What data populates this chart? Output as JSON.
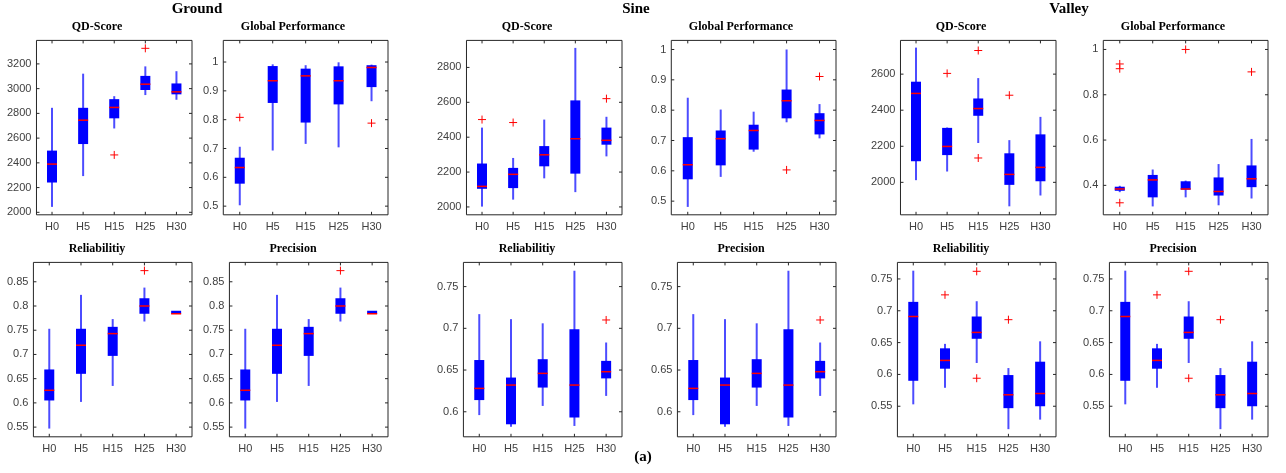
{
  "chart_data": [
    {
      "type": "other",
      "title": "Ground"
    },
    {
      "type": "other",
      "title": "Sine"
    },
    {
      "type": "other",
      "title": "Valley"
    },
    {
      "type": "box",
      "title": "QD-Score",
      "categories": [
        "H0",
        "H5",
        "H15",
        "H25",
        "H30"
      ],
      "color": "#0000ff",
      "ylim": [
        1980,
        3390
      ],
      "yticks": [
        2000,
        2200,
        2400,
        2600,
        2800,
        3000,
        3200
      ],
      "boxes": [
        {
          "low": 2044,
          "q1": 2241,
          "median": 2390,
          "q3": 2499,
          "high": 2845
        },
        {
          "low": 2293,
          "q1": 2552,
          "median": 2745,
          "q3": 2845,
          "high": 3121
        },
        {
          "low": 2678,
          "q1": 2760,
          "median": 2848,
          "q3": 2915,
          "high": 2939,
          "outliers": [
            2464
          ]
        },
        {
          "low": 2948,
          "q1": 2989,
          "median": 3036,
          "q3": 3103,
          "high": 3180,
          "outliers": [
            3326
          ]
        },
        {
          "low": 2910,
          "q1": 2954,
          "median": 2974,
          "q3": 3042,
          "high": 3141
        }
      ]
    },
    {
      "type": "box",
      "title": "Global Performance",
      "categories": [
        "H0",
        "H5",
        "H15",
        "H25",
        "H30"
      ],
      "color": "#0000ff",
      "ylim": [
        0.47,
        1.075
      ],
      "yticks": [
        0.5,
        0.6,
        0.7,
        0.8,
        0.9,
        1
      ],
      "boxes": [
        {
          "low": 0.503,
          "q1": 0.578,
          "median": 0.634,
          "q3": 0.668,
          "high": 0.706,
          "outliers": [
            0.808
          ]
        },
        {
          "low": 0.693,
          "q1": 0.858,
          "median": 0.935,
          "q3": 0.986,
          "high": 0.992
        },
        {
          "low": 0.716,
          "q1": 0.79,
          "median": 0.952,
          "q3": 0.977,
          "high": 0.989
        },
        {
          "low": 0.704,
          "q1": 0.853,
          "median": 0.935,
          "q3": 0.985,
          "high": 0.999
        },
        {
          "low": 0.864,
          "q1": 0.913,
          "median": 0.981,
          "q3": 0.989,
          "high": 0.991,
          "outliers": [
            0.788
          ]
        }
      ]
    },
    {
      "type": "box",
      "title": "QD-Score",
      "categories": [
        "H0",
        "H5",
        "H15",
        "H25",
        "H30"
      ],
      "color": "#0000ff",
      "ylim": [
        1955,
        2955
      ],
      "yticks": [
        2000,
        2200,
        2400,
        2600,
        2800
      ],
      "boxes": [
        {
          "low": 2002,
          "q1": 2104,
          "median": 2118,
          "q3": 2249,
          "high": 2455,
          "outliers": [
            2501
          ]
        },
        {
          "low": 2042,
          "q1": 2108,
          "median": 2187,
          "q3": 2224,
          "high": 2281,
          "outliers": [
            2484
          ]
        },
        {
          "low": 2164,
          "q1": 2233,
          "median": 2299,
          "q3": 2349,
          "high": 2501
        },
        {
          "low": 2085,
          "q1": 2191,
          "median": 2391,
          "q3": 2611,
          "high": 2912
        },
        {
          "low": 2290,
          "q1": 2357,
          "median": 2382,
          "q3": 2455,
          "high": 2517,
          "outliers": [
            2621
          ]
        }
      ]
    },
    {
      "type": "box",
      "title": "Global Performance",
      "categories": [
        "H0",
        "H5",
        "H15",
        "H25",
        "H30"
      ],
      "color": "#0000ff",
      "ylim": [
        0.455,
        1.03
      ],
      "yticks": [
        0.5,
        0.6,
        0.7,
        0.8,
        0.9,
        1
      ],
      "boxes": [
        {
          "low": 0.481,
          "q1": 0.572,
          "median": 0.62,
          "q3": 0.711,
          "high": 0.841
        },
        {
          "low": 0.58,
          "q1": 0.618,
          "median": 0.706,
          "q3": 0.733,
          "high": 0.802
        },
        {
          "low": 0.663,
          "q1": 0.67,
          "median": 0.733,
          "q3": 0.752,
          "high": 0.795
        },
        {
          "low": 0.76,
          "q1": 0.773,
          "median": 0.831,
          "q3": 0.868,
          "high": 1.0,
          "outliers": [
            0.603
          ]
        },
        {
          "low": 0.707,
          "q1": 0.72,
          "median": 0.766,
          "q3": 0.79,
          "high": 0.82,
          "outliers": [
            0.911
          ]
        }
      ]
    },
    {
      "type": "box",
      "title": "QD-Score",
      "categories": [
        "H0",
        "H5",
        "H15",
        "H25",
        "H30"
      ],
      "color": "#0000ff",
      "ylim": [
        1820,
        2787
      ],
      "yticks": [
        2000,
        2200,
        2400,
        2600
      ],
      "boxes": [
        {
          "low": 2012,
          "q1": 2117,
          "median": 2493,
          "q3": 2558,
          "high": 2747
        },
        {
          "low": 2060,
          "q1": 2151,
          "median": 2199,
          "q3": 2302,
          "high": 2304,
          "outliers": [
            2604
          ]
        },
        {
          "low": 2218,
          "q1": 2369,
          "median": 2409,
          "q3": 2465,
          "high": 2578,
          "outliers": [
            2731,
            2135
          ]
        },
        {
          "low": 1867,
          "q1": 1986,
          "median": 2044,
          "q3": 2161,
          "high": 2234,
          "outliers": [
            2483
          ]
        },
        {
          "low": 1927,
          "q1": 2006,
          "median": 2083,
          "q3": 2266,
          "high": 2363
        }
      ]
    },
    {
      "type": "box",
      "title": "Global Performance",
      "categories": [
        "H0",
        "H5",
        "H15",
        "H25",
        "H30"
      ],
      "color": "#0000ff",
      "ylim": [
        0.27,
        1.04
      ],
      "yticks": [
        0.4,
        0.6,
        0.8,
        1
      ],
      "boxes": [
        {
          "low": 0.37,
          "q1": 0.376,
          "median": 0.384,
          "q3": 0.394,
          "high": 0.398,
          "outliers": [
            0.936,
            0.915,
            0.323
          ]
        },
        {
          "low": 0.307,
          "q1": 0.347,
          "median": 0.424,
          "q3": 0.446,
          "high": 0.47
        },
        {
          "low": 0.347,
          "q1": 0.381,
          "median": 0.384,
          "q3": 0.418,
          "high": 0.421,
          "outliers": [
            1.0
          ]
        },
        {
          "low": 0.312,
          "q1": 0.355,
          "median": 0.373,
          "q3": 0.435,
          "high": 0.494
        },
        {
          "low": 0.342,
          "q1": 0.392,
          "median": 0.429,
          "q3": 0.488,
          "high": 0.605,
          "outliers": [
            0.901
          ]
        }
      ]
    },
    {
      "type": "box",
      "title": "Reliabilitiy",
      "categories": [
        "H0",
        "H5",
        "H15",
        "H25",
        "H30"
      ],
      "color": "#0000ff",
      "ylim": [
        0.53,
        0.89
      ],
      "yticks": [
        0.55,
        0.6,
        0.65,
        0.7,
        0.75,
        0.8,
        0.85
      ],
      "boxes": [
        {
          "low": 0.547,
          "q1": 0.605,
          "median": 0.626,
          "q3": 0.669,
          "high": 0.753
        },
        {
          "low": 0.602,
          "q1": 0.66,
          "median": 0.719,
          "q3": 0.753,
          "high": 0.823
        },
        {
          "low": 0.635,
          "q1": 0.697,
          "median": 0.743,
          "q3": 0.757,
          "high": 0.773
        },
        {
          "low": 0.768,
          "q1": 0.784,
          "median": 0.8,
          "q3": 0.816,
          "high": 0.838,
          "outliers": [
            0.873
          ]
        },
        {
          "low": 0.784,
          "q1": 0.784,
          "median": 0.784,
          "q3": 0.784,
          "high": 0.784
        }
      ]
    },
    {
      "type": "box",
      "title": "Precision",
      "categories": [
        "H0",
        "H5",
        "H15",
        "H25",
        "H30"
      ],
      "color": "#0000ff",
      "ylim": [
        0.53,
        0.89
      ],
      "yticks": [
        0.55,
        0.6,
        0.65,
        0.7,
        0.75,
        0.8,
        0.85
      ],
      "boxes": [
        {
          "low": 0.547,
          "q1": 0.605,
          "median": 0.626,
          "q3": 0.669,
          "high": 0.753
        },
        {
          "low": 0.602,
          "q1": 0.66,
          "median": 0.719,
          "q3": 0.753,
          "high": 0.823
        },
        {
          "low": 0.635,
          "q1": 0.697,
          "median": 0.743,
          "q3": 0.757,
          "high": 0.773
        },
        {
          "low": 0.768,
          "q1": 0.784,
          "median": 0.8,
          "q3": 0.816,
          "high": 0.838,
          "outliers": [
            0.873
          ]
        },
        {
          "low": 0.784,
          "q1": 0.784,
          "median": 0.784,
          "q3": 0.784,
          "high": 0.784
        }
      ]
    },
    {
      "type": "box",
      "title": "Reliabilitiy",
      "categories": [
        "H0",
        "H5",
        "H15",
        "H25",
        "H30"
      ],
      "color": "#0000ff",
      "ylim": [
        0.57,
        0.779
      ],
      "yticks": [
        0.6,
        0.65,
        0.7,
        0.75
      ],
      "boxes": [
        {
          "low": 0.596,
          "q1": 0.614,
          "median": 0.628,
          "q3": 0.662,
          "high": 0.717
        },
        {
          "low": 0.582,
          "q1": 0.585,
          "median": 0.632,
          "q3": 0.641,
          "high": 0.711
        },
        {
          "low": 0.607,
          "q1": 0.629,
          "median": 0.646,
          "q3": 0.663,
          "high": 0.706
        },
        {
          "low": 0.583,
          "q1": 0.593,
          "median": 0.632,
          "q3": 0.699,
          "high": 0.769
        },
        {
          "low": 0.619,
          "q1": 0.64,
          "median": 0.648,
          "q3": 0.661,
          "high": 0.683,
          "outliers": [
            0.71
          ]
        }
      ]
    },
    {
      "type": "box",
      "title": "Precision",
      "categories": [
        "H0",
        "H5",
        "H15",
        "H25",
        "H30"
      ],
      "color": "#0000ff",
      "ylim": [
        0.57,
        0.779
      ],
      "yticks": [
        0.6,
        0.65,
        0.7,
        0.75
      ],
      "boxes": [
        {
          "low": 0.596,
          "q1": 0.614,
          "median": 0.628,
          "q3": 0.662,
          "high": 0.717
        },
        {
          "low": 0.582,
          "q1": 0.585,
          "median": 0.632,
          "q3": 0.641,
          "high": 0.711
        },
        {
          "low": 0.607,
          "q1": 0.629,
          "median": 0.646,
          "q3": 0.663,
          "high": 0.706
        },
        {
          "low": 0.583,
          "q1": 0.593,
          "median": 0.632,
          "q3": 0.699,
          "high": 0.769
        },
        {
          "low": 0.619,
          "q1": 0.64,
          "median": 0.648,
          "q3": 0.661,
          "high": 0.683,
          "outliers": [
            0.71
          ]
        }
      ]
    },
    {
      "type": "box",
      "title": "Reliabilitiy",
      "categories": [
        "H0",
        "H5",
        "H15",
        "H25",
        "H30"
      ],
      "color": "#0000ff",
      "ylim": [
        0.502,
        0.776
      ],
      "yticks": [
        0.55,
        0.6,
        0.65,
        0.7,
        0.75
      ],
      "boxes": [
        {
          "low": 0.553,
          "q1": 0.59,
          "median": 0.691,
          "q3": 0.714,
          "high": 0.763
        },
        {
          "low": 0.579,
          "q1": 0.609,
          "median": 0.622,
          "q3": 0.641,
          "high": 0.648,
          "outliers": [
            0.725
          ]
        },
        {
          "low": 0.618,
          "q1": 0.656,
          "median": 0.666,
          "q3": 0.691,
          "high": 0.715,
          "outliers": [
            0.762,
            0.594
          ]
        },
        {
          "low": 0.514,
          "q1": 0.547,
          "median": 0.568,
          "q3": 0.599,
          "high": 0.61,
          "outliers": [
            0.686
          ]
        },
        {
          "low": 0.529,
          "q1": 0.55,
          "median": 0.57,
          "q3": 0.62,
          "high": 0.652
        }
      ]
    },
    {
      "type": "box",
      "title": "Precision",
      "categories": [
        "H0",
        "H5",
        "H15",
        "H25",
        "H30"
      ],
      "color": "#0000ff",
      "ylim": [
        0.502,
        0.776
      ],
      "yticks": [
        0.55,
        0.6,
        0.65,
        0.7,
        0.75
      ],
      "boxes": [
        {
          "low": 0.553,
          "q1": 0.59,
          "median": 0.691,
          "q3": 0.714,
          "high": 0.763
        },
        {
          "low": 0.579,
          "q1": 0.609,
          "median": 0.622,
          "q3": 0.641,
          "high": 0.648,
          "outliers": [
            0.725
          ]
        },
        {
          "low": 0.618,
          "q1": 0.656,
          "median": 0.666,
          "q3": 0.691,
          "high": 0.715,
          "outliers": [
            0.762,
            0.594
          ]
        },
        {
          "low": 0.514,
          "q1": 0.547,
          "median": 0.568,
          "q3": 0.599,
          "high": 0.61,
          "outliers": [
            0.686
          ]
        },
        {
          "low": 0.529,
          "q1": 0.55,
          "median": 0.57,
          "q3": 0.62,
          "high": 0.652
        }
      ]
    },
    {
      "type": "other",
      "annotations": [
        "(a)"
      ]
    }
  ]
}
